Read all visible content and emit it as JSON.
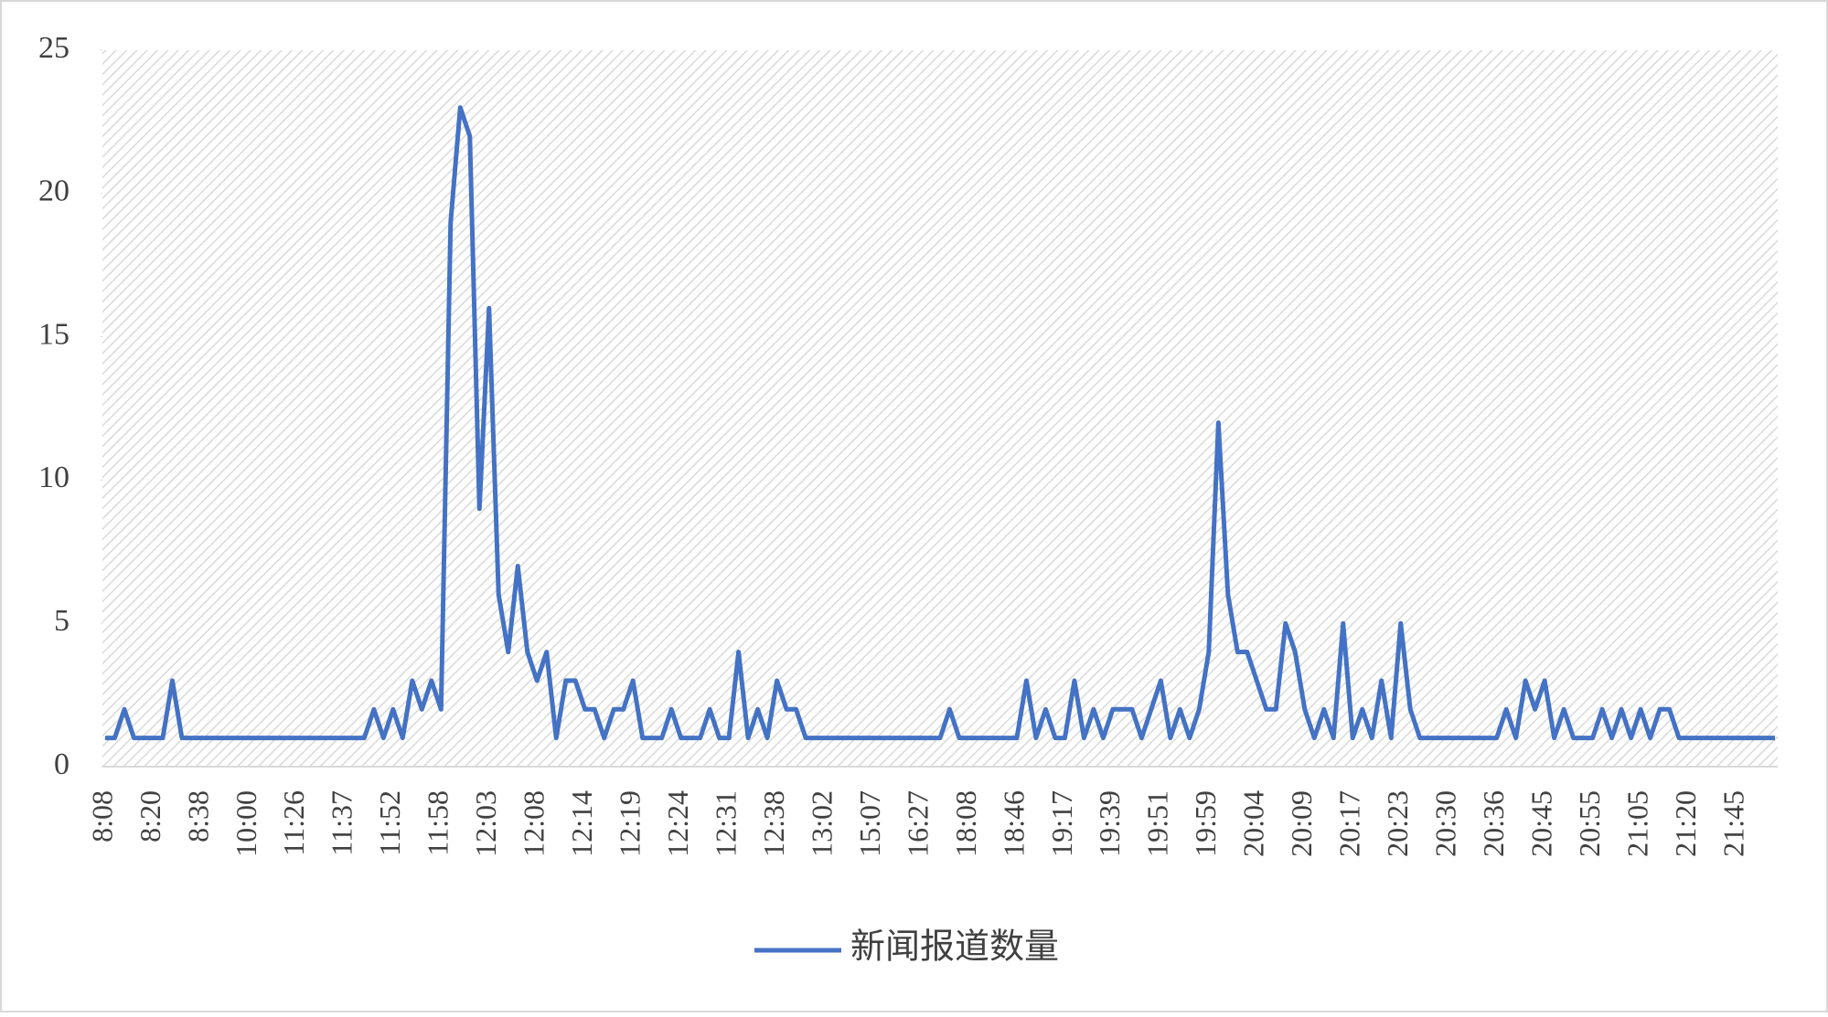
{
  "chart_data": {
    "type": "line",
    "categories": [
      "8:08",
      null,
      null,
      null,
      null,
      "8:20",
      null,
      null,
      null,
      null,
      "8:38",
      null,
      null,
      null,
      null,
      "10:00",
      null,
      null,
      null,
      null,
      "11:26",
      null,
      null,
      null,
      null,
      "11:37",
      null,
      null,
      null,
      null,
      "11:52",
      null,
      null,
      null,
      null,
      "11:58",
      null,
      null,
      null,
      null,
      "12:03",
      null,
      null,
      null,
      null,
      "12:08",
      null,
      null,
      null,
      null,
      "12:14",
      null,
      null,
      null,
      null,
      "12:19",
      null,
      null,
      null,
      null,
      "12:24",
      null,
      null,
      null,
      null,
      "12:31",
      null,
      null,
      null,
      null,
      "12:38",
      null,
      null,
      null,
      null,
      "13:02",
      null,
      null,
      null,
      null,
      "15:07",
      null,
      null,
      null,
      null,
      "16:27",
      null,
      null,
      null,
      null,
      "18:08",
      null,
      null,
      null,
      null,
      "18:46",
      null,
      null,
      null,
      null,
      "19:17",
      null,
      null,
      null,
      null,
      "19:39",
      null,
      null,
      null,
      null,
      "19:51",
      null,
      null,
      null,
      null,
      "19:59",
      null,
      null,
      null,
      null,
      "20:04",
      null,
      null,
      null,
      null,
      "20:09",
      null,
      null,
      null,
      null,
      "20:17",
      null,
      null,
      null,
      null,
      "20:23",
      null,
      null,
      null,
      null,
      "20:30",
      null,
      null,
      null,
      null,
      "20:36",
      null,
      null,
      null,
      null,
      "20:45",
      null,
      null,
      null,
      null,
      "20:55",
      null,
      null,
      null,
      null,
      "21:05",
      null,
      null,
      null,
      null,
      "21:20",
      null,
      null,
      null,
      null,
      "21:45",
      null,
      null,
      null,
      null
    ],
    "series": [
      {
        "name": "新闻报道数量",
        "color": "#4472c4",
        "values": [
          1,
          1,
          2,
          1,
          1,
          1,
          1,
          3,
          1,
          1,
          1,
          1,
          1,
          1,
          1,
          1,
          1,
          1,
          1,
          1,
          1,
          1,
          1,
          1,
          1,
          1,
          1,
          1,
          2,
          1,
          2,
          1,
          3,
          2,
          3,
          2,
          19,
          23,
          22,
          9,
          16,
          6,
          4,
          7,
          4,
          3,
          4,
          1,
          3,
          3,
          2,
          2,
          1,
          2,
          2,
          3,
          1,
          1,
          1,
          2,
          1,
          1,
          1,
          2,
          1,
          1,
          4,
          1,
          2,
          1,
          3,
          2,
          2,
          1,
          1,
          1,
          1,
          1,
          1,
          1,
          1,
          1,
          1,
          1,
          1,
          1,
          1,
          1,
          2,
          1,
          1,
          1,
          1,
          1,
          1,
          1,
          3,
          1,
          2,
          1,
          1,
          3,
          1,
          2,
          1,
          2,
          2,
          2,
          1,
          2,
          3,
          1,
          2,
          1,
          2,
          4,
          12,
          6,
          4,
          4,
          3,
          2,
          2,
          5,
          4,
          2,
          1,
          2,
          1,
          5,
          1,
          2,
          1,
          3,
          1,
          5,
          2,
          1,
          1,
          1,
          1,
          1,
          1,
          1,
          1,
          1,
          2,
          1,
          3,
          2,
          3,
          1,
          2,
          1,
          1,
          1,
          2,
          1,
          2,
          1,
          2,
          1,
          2,
          2,
          1,
          1,
          1,
          1,
          1,
          1,
          1,
          1,
          1,
          1,
          1
        ]
      }
    ],
    "ylim": [
      0,
      25
    ],
    "yticks": [
      0,
      5,
      10,
      15,
      20,
      25
    ],
    "legend": "bottom"
  }
}
